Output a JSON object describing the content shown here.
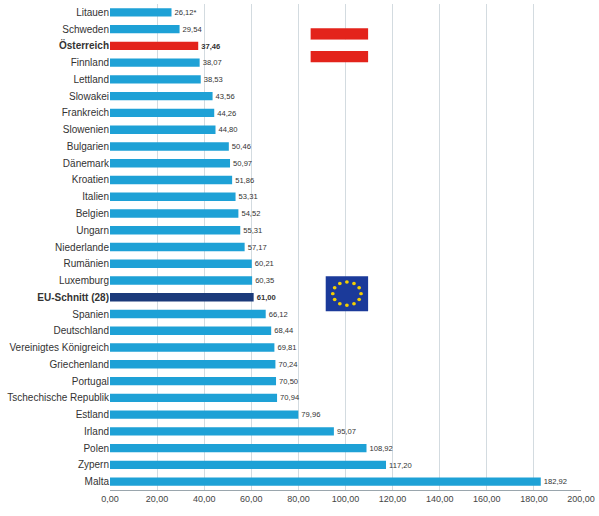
{
  "chart_data": {
    "type": "bar",
    "orientation": "horizontal",
    "categories": [
      "Litauen",
      "Schweden",
      "Österreich",
      "Finnland",
      "Lettland",
      "Slowakei",
      "Frankreich",
      "Slowenien",
      "Bulgarien",
      "Dänemark",
      "Kroatien",
      "Italien",
      "Belgien",
      "Ungarn",
      "Niederlande",
      "Rumänien",
      "Luxemburg",
      "EU-Schnitt (28)",
      "Spanien",
      "Deutschland",
      "Vereinigtes Königreich",
      "Griechenland",
      "Portugal",
      "Tschechische Republik",
      "Estland",
      "Irland",
      "Polen",
      "Zypern",
      "Malta"
    ],
    "values": [
      26.12,
      29.54,
      37.46,
      38.07,
      38.53,
      43.56,
      44.26,
      44.8,
      50.46,
      50.97,
      51.86,
      53.31,
      54.52,
      55.31,
      57.17,
      60.21,
      60.35,
      61.0,
      66.12,
      68.44,
      69.81,
      70.24,
      70.5,
      70.94,
      79.96,
      95.07,
      108.92,
      117.2,
      182.92
    ],
    "value_labels": [
      "26,12*",
      "29,54",
      "37,46",
      "38,07",
      "38,53",
      "43,56",
      "44,26",
      "44,80",
      "50,46",
      "50,97",
      "51,86",
      "53,31",
      "54,52",
      "55,31",
      "57,17",
      "60,21",
      "60,35",
      "61,00",
      "66,12",
      "68,44",
      "69,81",
      "70,24",
      "70,50",
      "70,94",
      "79,96",
      "95,07",
      "108,92",
      "117,20",
      "182,92"
    ],
    "colors": [
      "#1ea1d6",
      "#1ea1d6",
      "#e3231b",
      "#1ea1d6",
      "#1ea1d6",
      "#1ea1d6",
      "#1ea1d6",
      "#1ea1d6",
      "#1ea1d6",
      "#1ea1d6",
      "#1ea1d6",
      "#1ea1d6",
      "#1ea1d6",
      "#1ea1d6",
      "#1ea1d6",
      "#1ea1d6",
      "#1ea1d6",
      "#1b3a7a",
      "#1ea1d6",
      "#1ea1d6",
      "#1ea1d6",
      "#1ea1d6",
      "#1ea1d6",
      "#1ea1d6",
      "#1ea1d6",
      "#1ea1d6",
      "#1ea1d6",
      "#1ea1d6",
      "#1ea1d6"
    ],
    "xlim": [
      0,
      200
    ],
    "xticks": [
      {
        "value": 0,
        "label": "0,00"
      },
      {
        "value": 20,
        "label": "20,00"
      },
      {
        "value": 40,
        "label": "40,00"
      },
      {
        "value": 60,
        "label": "60,00"
      },
      {
        "value": 80,
        "label": "80,00"
      },
      {
        "value": 100,
        "label": "100,00"
      },
      {
        "value": 120,
        "label": "120,00"
      },
      {
        "value": 140,
        "label": "140,00"
      },
      {
        "value": 160,
        "label": "160,00"
      },
      {
        "value": 180,
        "label": "180,00"
      },
      {
        "value": 200,
        "label": "200,00"
      }
    ],
    "grid": true,
    "data_labels": true
  }
}
